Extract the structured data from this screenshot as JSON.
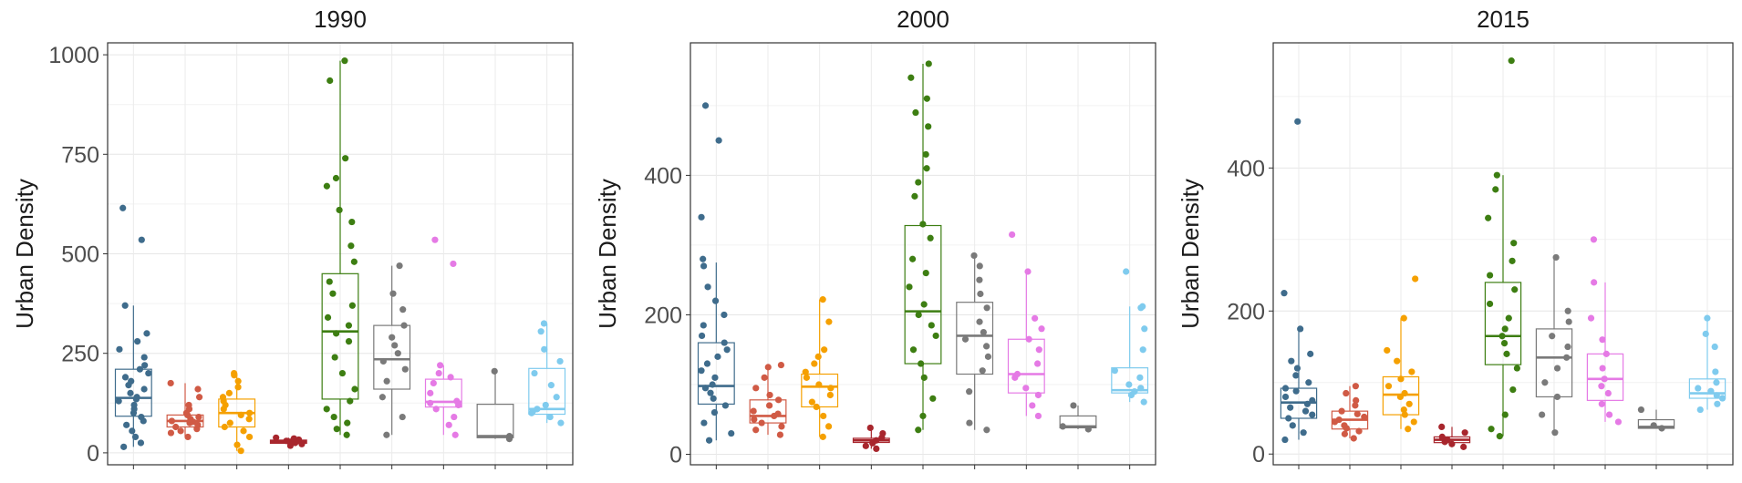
{
  "chart_data": [
    {
      "type": "box",
      "title": "1990",
      "ylabel": "Urban Density",
      "ylim": [
        -30,
        1030
      ],
      "yticks": [
        0,
        250,
        500,
        750,
        1000
      ],
      "grid": true,
      "groups": [
        {
          "color": "#3f6c8c",
          "median": 138,
          "q1": 92,
          "q3": 210,
          "whisker_low": 15,
          "whisker_high": 370,
          "points": [
            15,
            25,
            40,
            55,
            70,
            80,
            90,
            100,
            110,
            120,
            130,
            135,
            140,
            150,
            160,
            170,
            180,
            190,
            200,
            210,
            220,
            240,
            260,
            280,
            300,
            370,
            535,
            615
          ]
        },
        {
          "color": "#d05a45",
          "median": 80,
          "q1": 65,
          "q3": 95,
          "whisker_low": 40,
          "whisker_high": 175,
          "points": [
            40,
            50,
            55,
            60,
            65,
            70,
            75,
            78,
            80,
            85,
            90,
            95,
            100,
            110,
            120,
            140,
            160,
            175
          ]
        },
        {
          "color": "#f5a000",
          "median": 100,
          "q1": 65,
          "q3": 135,
          "whisker_low": 5,
          "whisker_high": 200,
          "points": [
            5,
            20,
            40,
            55,
            65,
            75,
            85,
            95,
            100,
            110,
            120,
            130,
            140,
            150,
            165,
            180,
            195,
            200
          ]
        },
        {
          "color": "#a8262d",
          "median": 28,
          "q1": 24,
          "q3": 32,
          "whisker_low": 18,
          "whisker_high": 38,
          "points": [
            18,
            22,
            25,
            28,
            30,
            33,
            36,
            38
          ]
        },
        {
          "color": "#3d7e12",
          "median": 305,
          "q1": 135,
          "q3": 450,
          "whisker_low": 45,
          "whisker_high": 985,
          "points": [
            45,
            60,
            75,
            90,
            110,
            130,
            160,
            200,
            240,
            280,
            300,
            320,
            340,
            370,
            400,
            430,
            480,
            520,
            580,
            610,
            670,
            690,
            740,
            935,
            985
          ]
        },
        {
          "color": "#7a7a7a",
          "median": 235,
          "q1": 160,
          "q3": 320,
          "whisker_low": 45,
          "whisker_high": 470,
          "points": [
            45,
            90,
            140,
            180,
            210,
            230,
            250,
            270,
            290,
            320,
            360,
            400,
            470
          ]
        },
        {
          "color": "#e57ae5",
          "median": 128,
          "q1": 115,
          "q3": 185,
          "whisker_low": 45,
          "whisker_high": 220,
          "points": [
            45,
            70,
            90,
            110,
            120,
            125,
            130,
            150,
            175,
            190,
            200,
            220,
            475,
            535
          ]
        },
        {
          "color": "#777777",
          "median": 42,
          "q1": 38,
          "q3": 122,
          "whisker_low": 35,
          "whisker_high": 205,
          "points": [
            35,
            42,
            205
          ]
        },
        {
          "color": "#7fcbee",
          "median": 110,
          "q1": 97,
          "q3": 212,
          "whisker_low": 75,
          "whisker_high": 325,
          "points": [
            75,
            90,
            100,
            105,
            110,
            120,
            140,
            170,
            200,
            230,
            260,
            305,
            325
          ]
        }
      ]
    },
    {
      "type": "box",
      "title": "2000",
      "ylabel": "Urban Density",
      "ylim": [
        -15,
        590
      ],
      "yticks": [
        0,
        200,
        400
      ],
      "grid": true,
      "groups": [
        {
          "color": "#3f6c8c",
          "median": 98,
          "q1": 72,
          "q3": 160,
          "whisker_low": 20,
          "whisker_high": 275,
          "points": [
            20,
            30,
            45,
            60,
            70,
            80,
            88,
            95,
            100,
            110,
            120,
            130,
            140,
            150,
            160,
            170,
            185,
            200,
            220,
            240,
            270,
            280,
            340,
            450,
            500
          ]
        },
        {
          "color": "#d05a45",
          "median": 55,
          "q1": 45,
          "q3": 78,
          "whisker_low": 28,
          "whisker_high": 128,
          "points": [
            28,
            35,
            40,
            45,
            50,
            55,
            58,
            62,
            70,
            78,
            85,
            95,
            110,
            125,
            128
          ]
        },
        {
          "color": "#f5a000",
          "median": 97,
          "q1": 68,
          "q3": 115,
          "whisker_low": 25,
          "whisker_high": 222,
          "points": [
            25,
            40,
            55,
            68,
            75,
            85,
            95,
            100,
            110,
            118,
            130,
            140,
            150,
            190,
            222
          ]
        },
        {
          "color": "#a8262d",
          "median": 20,
          "q1": 17,
          "q3": 23,
          "whisker_low": 8,
          "whisker_high": 38,
          "points": [
            8,
            12,
            16,
            20,
            24,
            30,
            38
          ]
        },
        {
          "color": "#3d7e12",
          "median": 205,
          "q1": 130,
          "q3": 328,
          "whisker_low": 35,
          "whisker_high": 560,
          "points": [
            35,
            55,
            80,
            110,
            130,
            150,
            170,
            185,
            200,
            215,
            240,
            260,
            280,
            310,
            330,
            370,
            390,
            410,
            430,
            470,
            490,
            510,
            540,
            560
          ]
        },
        {
          "color": "#7a7a7a",
          "median": 170,
          "q1": 115,
          "q3": 218,
          "whisker_low": 35,
          "whisker_high": 285,
          "points": [
            35,
            45,
            90,
            120,
            140,
            155,
            165,
            175,
            190,
            210,
            230,
            250,
            270,
            285
          ]
        },
        {
          "color": "#e57ae5",
          "median": 115,
          "q1": 88,
          "q3": 165,
          "whisker_low": 55,
          "whisker_high": 262,
          "points": [
            55,
            70,
            85,
            95,
            110,
            115,
            130,
            150,
            165,
            180,
            195,
            262,
            315
          ]
        },
        {
          "color": "#777777",
          "median": 40,
          "q1": 38,
          "q3": 55,
          "whisker_low": 36,
          "whisker_high": 70,
          "points": [
            36,
            40,
            70
          ]
        },
        {
          "color": "#7fcbee",
          "median": 92,
          "q1": 88,
          "q3": 124,
          "whisker_low": 75,
          "whisker_high": 212,
          "points": [
            75,
            85,
            90,
            95,
            100,
            110,
            120,
            150,
            180,
            210,
            212,
            262
          ]
        }
      ]
    },
    {
      "type": "box",
      "title": "2015",
      "ylabel": "Urban Density",
      "ylim": [
        -15,
        575
      ],
      "yticks": [
        0,
        200,
        400
      ],
      "grid": true,
      "groups": [
        {
          "color": "#3f6c8c",
          "median": 72,
          "q1": 50,
          "q3": 92,
          "whisker_low": 20,
          "whisker_high": 175,
          "points": [
            20,
            30,
            40,
            50,
            55,
            60,
            65,
            70,
            75,
            80,
            88,
            92,
            100,
            110,
            120,
            130,
            140,
            175,
            225,
            465
          ]
        },
        {
          "color": "#d05a45",
          "median": 48,
          "q1": 35,
          "q3": 60,
          "whisker_low": 22,
          "whisker_high": 95,
          "points": [
            22,
            28,
            32,
            36,
            40,
            45,
            48,
            52,
            56,
            60,
            68,
            75,
            85,
            95
          ]
        },
        {
          "color": "#f5a000",
          "median": 83,
          "q1": 55,
          "q3": 108,
          "whisker_low": 35,
          "whisker_high": 190,
          "points": [
            35,
            45,
            55,
            62,
            70,
            80,
            85,
            95,
            105,
            115,
            130,
            145,
            190,
            245
          ]
        },
        {
          "color": "#a8262d",
          "median": 20,
          "q1": 16,
          "q3": 24,
          "whisker_low": 10,
          "whisker_high": 38,
          "points": [
            10,
            14,
            17,
            20,
            24,
            30,
            38
          ]
        },
        {
          "color": "#3d7e12",
          "median": 165,
          "q1": 125,
          "q3": 240,
          "whisker_low": 25,
          "whisker_high": 390,
          "points": [
            25,
            35,
            55,
            90,
            120,
            140,
            155,
            165,
            175,
            190,
            210,
            230,
            250,
            270,
            295,
            330,
            370,
            390,
            550
          ]
        },
        {
          "color": "#7a7a7a",
          "median": 135,
          "q1": 80,
          "q3": 175,
          "whisker_low": 30,
          "whisker_high": 275,
          "points": [
            30,
            55,
            80,
            100,
            120,
            135,
            150,
            165,
            185,
            200,
            275
          ]
        },
        {
          "color": "#e57ae5",
          "median": 105,
          "q1": 75,
          "q3": 140,
          "whisker_low": 45,
          "whisker_high": 240,
          "points": [
            45,
            55,
            70,
            85,
            95,
            105,
            120,
            140,
            160,
            190,
            240,
            300
          ]
        },
        {
          "color": "#777777",
          "median": 38,
          "q1": 36,
          "q3": 48,
          "whisker_low": 36,
          "whisker_high": 62,
          "points": [
            36,
            40,
            62
          ]
        },
        {
          "color": "#7fcbee",
          "median": 85,
          "q1": 78,
          "q3": 105,
          "whisker_low": 62,
          "whisker_high": 190,
          "points": [
            62,
            70,
            78,
            82,
            88,
            92,
            100,
            115,
            150,
            168,
            190
          ]
        }
      ]
    }
  ]
}
